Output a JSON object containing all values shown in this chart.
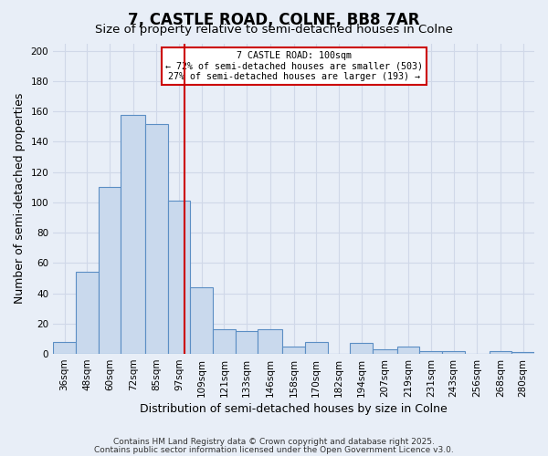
{
  "title": "7, CASTLE ROAD, COLNE, BB8 7AR",
  "subtitle": "Size of property relative to semi-detached houses in Colne",
  "xlabel": "Distribution of semi-detached houses by size in Colne",
  "ylabel": "Number of semi-detached properties",
  "bar_values": [
    8,
    54,
    110,
    158,
    152,
    101,
    44,
    16,
    15,
    16,
    5,
    8,
    0,
    7,
    3,
    5,
    2,
    2,
    0,
    2,
    1
  ],
  "bar_labels": [
    "36sqm",
    "48sqm",
    "60sqm",
    "72sqm",
    "85sqm",
    "97sqm",
    "109sqm",
    "121sqm",
    "133sqm",
    "146sqm",
    "158sqm",
    "170sqm",
    "182sqm",
    "194sqm",
    "207sqm",
    "219sqm",
    "231sqm",
    "243sqm",
    "256sqm",
    "268sqm",
    "280sqm"
  ],
  "bin_edges": [
    30,
    42,
    54,
    66,
    79,
    91,
    103,
    115,
    127,
    139,
    152,
    164,
    176,
    188,
    200,
    213,
    225,
    237,
    249,
    262,
    274,
    286
  ],
  "bar_color": "#c9d9ed",
  "bar_edge_color": "#5b8ec4",
  "vline_x": 100,
  "vline_color": "#cc0000",
  "annotation_title": "7 CASTLE ROAD: 100sqm",
  "annotation_line1": "← 72% of semi-detached houses are smaller (503)",
  "annotation_line2": "27% of semi-detached houses are larger (193) →",
  "annotation_box_color": "#ffffff",
  "annotation_box_edge": "#cc0000",
  "ylim": [
    0,
    205
  ],
  "yticks": [
    0,
    20,
    40,
    60,
    80,
    100,
    120,
    140,
    160,
    180,
    200
  ],
  "footer1": "Contains HM Land Registry data © Crown copyright and database right 2025.",
  "footer2": "Contains public sector information licensed under the Open Government Licence v3.0.",
  "background_color": "#e8eef7",
  "plot_background": "#e8eef7",
  "grid_color": "#d0d8e8",
  "title_fontsize": 12,
  "subtitle_fontsize": 9.5,
  "axis_label_fontsize": 9,
  "tick_fontsize": 7.5,
  "footer_fontsize": 6.5
}
